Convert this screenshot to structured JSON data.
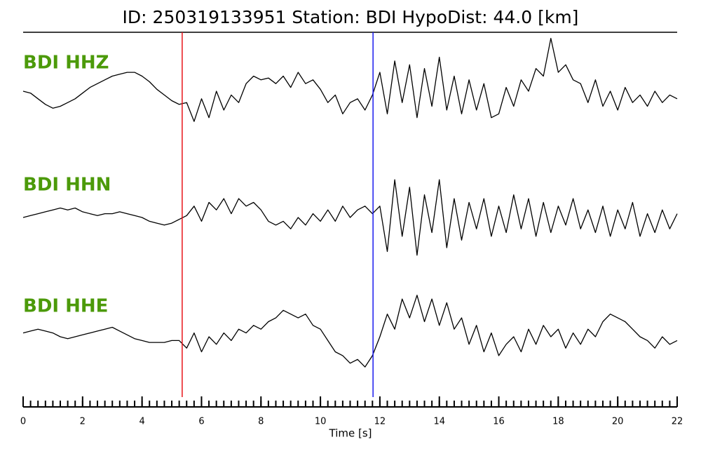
{
  "chart_data": {
    "type": "line",
    "title": "ID: 250319133951   Station: BDI   HypoDist:    44.0 [km]",
    "xlabel": "Time [s]",
    "label_color": "#4c9a0a",
    "x": [
      0,
      0.25,
      0.5,
      0.75,
      1,
      1.25,
      1.5,
      1.75,
      2,
      2.25,
      2.5,
      2.75,
      3,
      3.25,
      3.5,
      3.75,
      4,
      4.25,
      4.5,
      4.75,
      5,
      5.25,
      5.5,
      5.75,
      6,
      6.25,
      6.5,
      6.75,
      7,
      7.25,
      7.5,
      7.75,
      8,
      8.25,
      8.5,
      8.75,
      9,
      9.25,
      9.5,
      9.75,
      10,
      10.25,
      10.5,
      10.75,
      11,
      11.25,
      11.5,
      11.75,
      12,
      12.25,
      12.5,
      12.75,
      13,
      13.25,
      13.5,
      13.75,
      14,
      14.25,
      14.5,
      14.75,
      15,
      15.25,
      15.5,
      15.75,
      16,
      16.25,
      16.5,
      16.75,
      17,
      17.25,
      17.5,
      17.75,
      18,
      18.25,
      18.5,
      18.75,
      19,
      19.25,
      19.5,
      19.75,
      20,
      20.25,
      20.5,
      20.75,
      21,
      21.25,
      21.5,
      21.75,
      22
    ],
    "ylim": [
      -1.3,
      1.3
    ],
    "series": [
      {
        "name": "BDI HHZ",
        "color": "#000000",
        "values": [
          0,
          -0.05,
          -0.2,
          -0.35,
          -0.45,
          -0.4,
          -0.3,
          -0.2,
          -0.05,
          0.1,
          0.2,
          0.3,
          0.4,
          0.45,
          0.5,
          0.5,
          0.4,
          0.25,
          0.05,
          -0.1,
          -0.25,
          -0.35,
          -0.3,
          -0.8,
          -0.2,
          -0.7,
          0.0,
          -0.5,
          -0.1,
          -0.3,
          0.2,
          0.4,
          0.3,
          0.35,
          0.2,
          0.4,
          0.1,
          0.5,
          0.2,
          0.3,
          0.05,
          -0.3,
          -0.1,
          -0.6,
          -0.3,
          -0.2,
          -0.5,
          -0.1,
          0.5,
          -0.6,
          0.8,
          -0.3,
          0.7,
          -0.7,
          0.6,
          -0.4,
          0.9,
          -0.5,
          0.4,
          -0.6,
          0.3,
          -0.5,
          0.2,
          -0.7,
          -0.6,
          0.1,
          -0.4,
          0.3,
          0.0,
          0.6,
          0.4,
          1.4,
          0.5,
          0.7,
          0.3,
          0.2,
          -0.3,
          0.3,
          -0.4,
          0.0,
          -0.5,
          0.1,
          -0.3,
          -0.1,
          -0.4,
          0.0,
          -0.3,
          -0.1,
          -0.2
        ]
      },
      {
        "name": "BDI HHN",
        "color": "#000000",
        "values": [
          0,
          0.05,
          0.1,
          0.15,
          0.2,
          0.25,
          0.2,
          0.25,
          0.15,
          0.1,
          0.05,
          0.1,
          0.1,
          0.15,
          0.1,
          0.05,
          0,
          -0.1,
          -0.15,
          -0.2,
          -0.15,
          -0.05,
          0.05,
          0.3,
          -0.1,
          0.4,
          0.2,
          0.5,
          0.1,
          0.5,
          0.3,
          0.4,
          0.2,
          -0.1,
          -0.2,
          -0.1,
          -0.3,
          0.0,
          -0.2,
          0.1,
          -0.1,
          0.2,
          -0.1,
          0.3,
          0.0,
          0.2,
          0.3,
          0.1,
          0.3,
          -0.9,
          1.0,
          -0.5,
          0.8,
          -1.0,
          0.6,
          -0.4,
          1.0,
          -0.8,
          0.5,
          -0.6,
          0.4,
          -0.3,
          0.5,
          -0.5,
          0.3,
          -0.4,
          0.6,
          -0.3,
          0.5,
          -0.5,
          0.4,
          -0.4,
          0.3,
          -0.2,
          0.5,
          -0.3,
          0.2,
          -0.4,
          0.3,
          -0.5,
          0.2,
          -0.3,
          0.4,
          -0.5,
          0.1,
          -0.4,
          0.2,
          -0.3,
          0.1
        ]
      },
      {
        "name": "BDI HHE",
        "color": "#000000",
        "values": [
          0.1,
          0.15,
          0.2,
          0.15,
          0.1,
          0.0,
          -0.05,
          0.0,
          0.05,
          0.1,
          0.15,
          0.2,
          0.25,
          0.15,
          0.05,
          -0.05,
          -0.1,
          -0.15,
          -0.15,
          -0.15,
          -0.1,
          -0.1,
          -0.3,
          0.1,
          -0.4,
          0.0,
          -0.2,
          0.1,
          -0.1,
          0.2,
          0.1,
          0.3,
          0.2,
          0.4,
          0.5,
          0.7,
          0.6,
          0.5,
          0.6,
          0.3,
          0.2,
          -0.1,
          -0.4,
          -0.5,
          -0.7,
          -0.6,
          -0.8,
          -0.5,
          0.0,
          0.6,
          0.2,
          1.0,
          0.5,
          1.1,
          0.4,
          1.0,
          0.3,
          0.9,
          0.2,
          0.5,
          -0.2,
          0.3,
          -0.4,
          0.1,
          -0.5,
          -0.2,
          0.0,
          -0.4,
          0.2,
          -0.2,
          0.3,
          0.0,
          0.2,
          -0.3,
          0.1,
          -0.2,
          0.2,
          0.0,
          0.4,
          0.6,
          0.5,
          0.4,
          0.2,
          0.0,
          -0.1,
          -0.3,
          0.0,
          -0.2,
          -0.1
        ]
      }
    ],
    "vlines": [
      {
        "x": 5.35,
        "color": "#e8141a"
      },
      {
        "x": 11.77,
        "color": "#1a1aee"
      }
    ],
    "xlim": [
      0,
      22
    ],
    "xticks": [
      0,
      2,
      4,
      6,
      8,
      10,
      12,
      14,
      16,
      18,
      20,
      22
    ],
    "xminorticks": [
      0,
      0.25,
      0.5,
      0.75,
      1,
      1.25,
      1.5,
      1.75,
      2,
      2.25,
      2.5,
      2.75,
      3,
      3.25,
      3.5,
      3.75,
      4,
      4.25,
      4.5,
      4.75,
      5,
      5.25,
      5.5,
      5.75,
      6,
      6.25,
      6.5,
      6.75,
      7,
      7.25,
      7.5,
      7.75,
      8,
      8.25,
      8.5,
      8.75,
      9,
      9.25,
      9.5,
      9.75,
      10,
      10.25,
      10.5,
      10.75,
      11,
      11.25,
      11.5,
      11.75,
      12,
      12.25,
      12.5,
      12.75,
      13,
      13.25,
      13.5,
      13.75,
      14,
      14.25,
      14.5,
      14.75,
      15,
      15.25,
      15.5,
      15.75,
      16,
      16.25,
      16.5,
      16.75,
      17,
      17.25,
      17.5,
      17.75,
      18,
      18.25,
      18.5,
      18.75,
      19,
      19.25,
      19.5,
      19.75,
      20,
      20.25,
      20.5,
      20.75,
      21,
      21.25,
      21.5,
      21.75,
      22
    ]
  }
}
